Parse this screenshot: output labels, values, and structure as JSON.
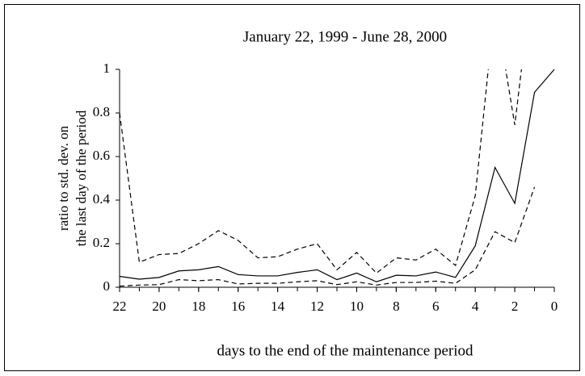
{
  "chart_data": {
    "type": "line",
    "title": "January 22, 1999 - June 28, 2000",
    "xlabel": "days to the end of the maintenance period",
    "ylabel": [
      "ratio to std. dev. on",
      "the last day of the period"
    ],
    "x": [
      22,
      21,
      20,
      19,
      18,
      17,
      16,
      15,
      14,
      13,
      12,
      11,
      10,
      9,
      8,
      7,
      6,
      5,
      4,
      3,
      2,
      1,
      0
    ],
    "series": [
      {
        "color": "#000000",
        "dashed": false,
        "values": [
          0.05,
          0.037,
          0.045,
          0.075,
          0.08,
          0.095,
          0.058,
          0.052,
          0.052,
          0.068,
          0.08,
          0.035,
          0.065,
          0.025,
          0.055,
          0.052,
          0.07,
          0.045,
          0.19,
          0.55,
          0.385,
          0.895,
          1
        ]
      },
      {
        "color": "#000000",
        "dashed": true,
        "values": [
          0.8,
          0.115,
          0.15,
          0.155,
          0.2,
          0.26,
          0.215,
          0.135,
          0.14,
          0.175,
          0.2,
          0.08,
          0.16,
          0.065,
          0.135,
          0.125,
          0.175,
          0.1,
          0.42,
          1.3,
          0.745,
          1.5,
          null
        ]
      },
      {
        "color": "#000000",
        "dashed": true,
        "values": [
          0.005,
          0.01,
          0.012,
          0.035,
          0.03,
          0.035,
          0.015,
          0.018,
          0.018,
          0.025,
          0.03,
          0.012,
          0.025,
          0.01,
          0.022,
          0.022,
          0.028,
          0.018,
          0.08,
          0.255,
          0.205,
          0.46,
          null
        ]
      }
    ],
    "xlim": [
      22,
      0
    ],
    "xticks": [
      22,
      20,
      18,
      16,
      14,
      12,
      10,
      8,
      6,
      4,
      2,
      0
    ],
    "ylim": [
      0,
      1
    ],
    "yticks": [
      0,
      0.2,
      0.4,
      0.6,
      0.8,
      1
    ]
  }
}
